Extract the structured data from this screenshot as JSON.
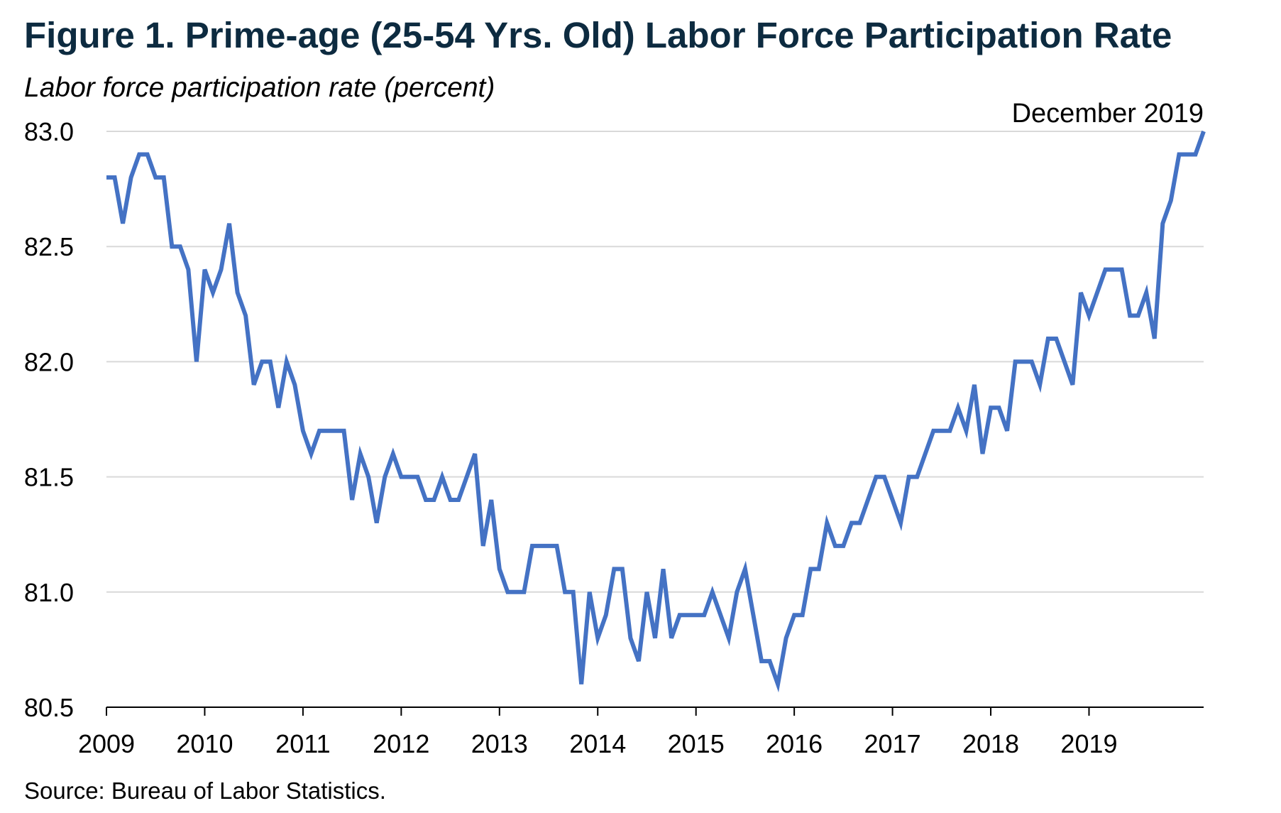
{
  "chart_data": {
    "type": "line",
    "title": "Figure 1. Prime-age (25-54 Yrs. Old) Labor Force Participation Rate",
    "ylabel": "Labor force participation rate (percent)",
    "xlabel": "",
    "source": "Source: Bureau of Labor Statistics.",
    "annotation": "December 2019",
    "ylim": [
      80.5,
      83.0
    ],
    "xlim": [
      "2009-01",
      "2019-12"
    ],
    "y_ticks": [
      "83.0",
      "82.5",
      "82.0",
      "81.5",
      "81.0",
      "80.5"
    ],
    "x_ticks": [
      "2009",
      "2010",
      "2011",
      "2012",
      "2013",
      "2014",
      "2015",
      "2016",
      "2017",
      "2018",
      "2019"
    ],
    "grid": true,
    "line_color": "#4472c4",
    "series": [
      {
        "start": "2009-01",
        "frequency": "monthly",
        "values": [
          82.8,
          82.8,
          82.6,
          82.8,
          82.9,
          82.9,
          82.8,
          82.8,
          82.5,
          82.5,
          82.4,
          82.0,
          82.4,
          82.3,
          82.4,
          82.6,
          82.3,
          82.2,
          81.9,
          82.0,
          82.0,
          81.8,
          82.0,
          81.9,
          81.7,
          81.6,
          81.7,
          81.7,
          81.7,
          81.7,
          81.4,
          81.6,
          81.5,
          81.3,
          81.5,
          81.6,
          81.5,
          81.5,
          81.5,
          81.4,
          81.4,
          81.5,
          81.4,
          81.4,
          81.5,
          81.6,
          81.2,
          81.4,
          81.1,
          81.0,
          81.0,
          81.0,
          81.2,
          81.2,
          81.2,
          81.2,
          81.0,
          81.0,
          80.6,
          81.0,
          80.8,
          80.9,
          81.1,
          81.1,
          80.8,
          80.7,
          81.0,
          80.8,
          81.1,
          80.8,
          80.9,
          80.9,
          80.9,
          80.9,
          81.0,
          80.9,
          80.8,
          81.0,
          81.1,
          80.9,
          80.7,
          80.7,
          80.6,
          80.8,
          80.9,
          80.9,
          81.1,
          81.1,
          81.3,
          81.2,
          81.2,
          81.3,
          81.3,
          81.4,
          81.5,
          81.5,
          81.4,
          81.3,
          81.5,
          81.5,
          81.6,
          81.7,
          81.7,
          81.7,
          81.8,
          81.7,
          81.9,
          81.6,
          81.8,
          81.8,
          81.7,
          82.0,
          82.0,
          82.0,
          81.9,
          82.1,
          82.1,
          82.0,
          81.9,
          82.3,
          82.2,
          82.3,
          82.4,
          82.4,
          82.4,
          82.2,
          82.2,
          82.3,
          82.1,
          82.6,
          82.7,
          82.9,
          82.9,
          82.9,
          83.0
        ]
      }
    ]
  }
}
